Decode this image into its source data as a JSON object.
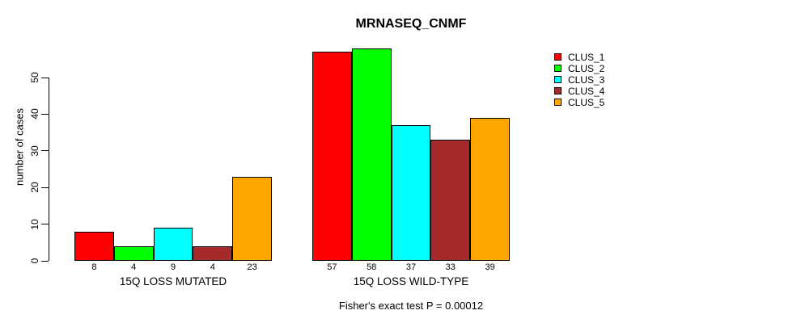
{
  "chart_data": {
    "type": "bar",
    "title": "MRNASEQ_CNMF",
    "ylabel": "number of cases",
    "xlabel": "",
    "caption": "Fisher's exact test P = 0.00012",
    "ylim": [
      0,
      58
    ],
    "yticks": [
      0,
      10,
      20,
      30,
      40,
      50
    ],
    "grid": false,
    "legend_position": "right",
    "categories": [
      "15Q LOSS MUTATED",
      "15Q LOSS WILD-TYPE"
    ],
    "series": [
      {
        "name": "CLUS_1",
        "color": "#FF0000",
        "values": [
          8,
          57
        ]
      },
      {
        "name": "CLUS_2",
        "color": "#00FF00",
        "values": [
          4,
          58
        ]
      },
      {
        "name": "CLUS_3",
        "color": "#00FFFF",
        "values": [
          9,
          37
        ]
      },
      {
        "name": "CLUS_4",
        "color": "#A52A2A",
        "values": [
          4,
          33
        ]
      },
      {
        "name": "CLUS_5",
        "color": "#FFA500",
        "values": [
          23,
          39
        ]
      }
    ],
    "bar_value_labels": [
      [
        "8",
        "4",
        "9",
        "4",
        "23"
      ],
      [
        "57",
        "58",
        "37",
        "33",
        "39"
      ]
    ]
  }
}
